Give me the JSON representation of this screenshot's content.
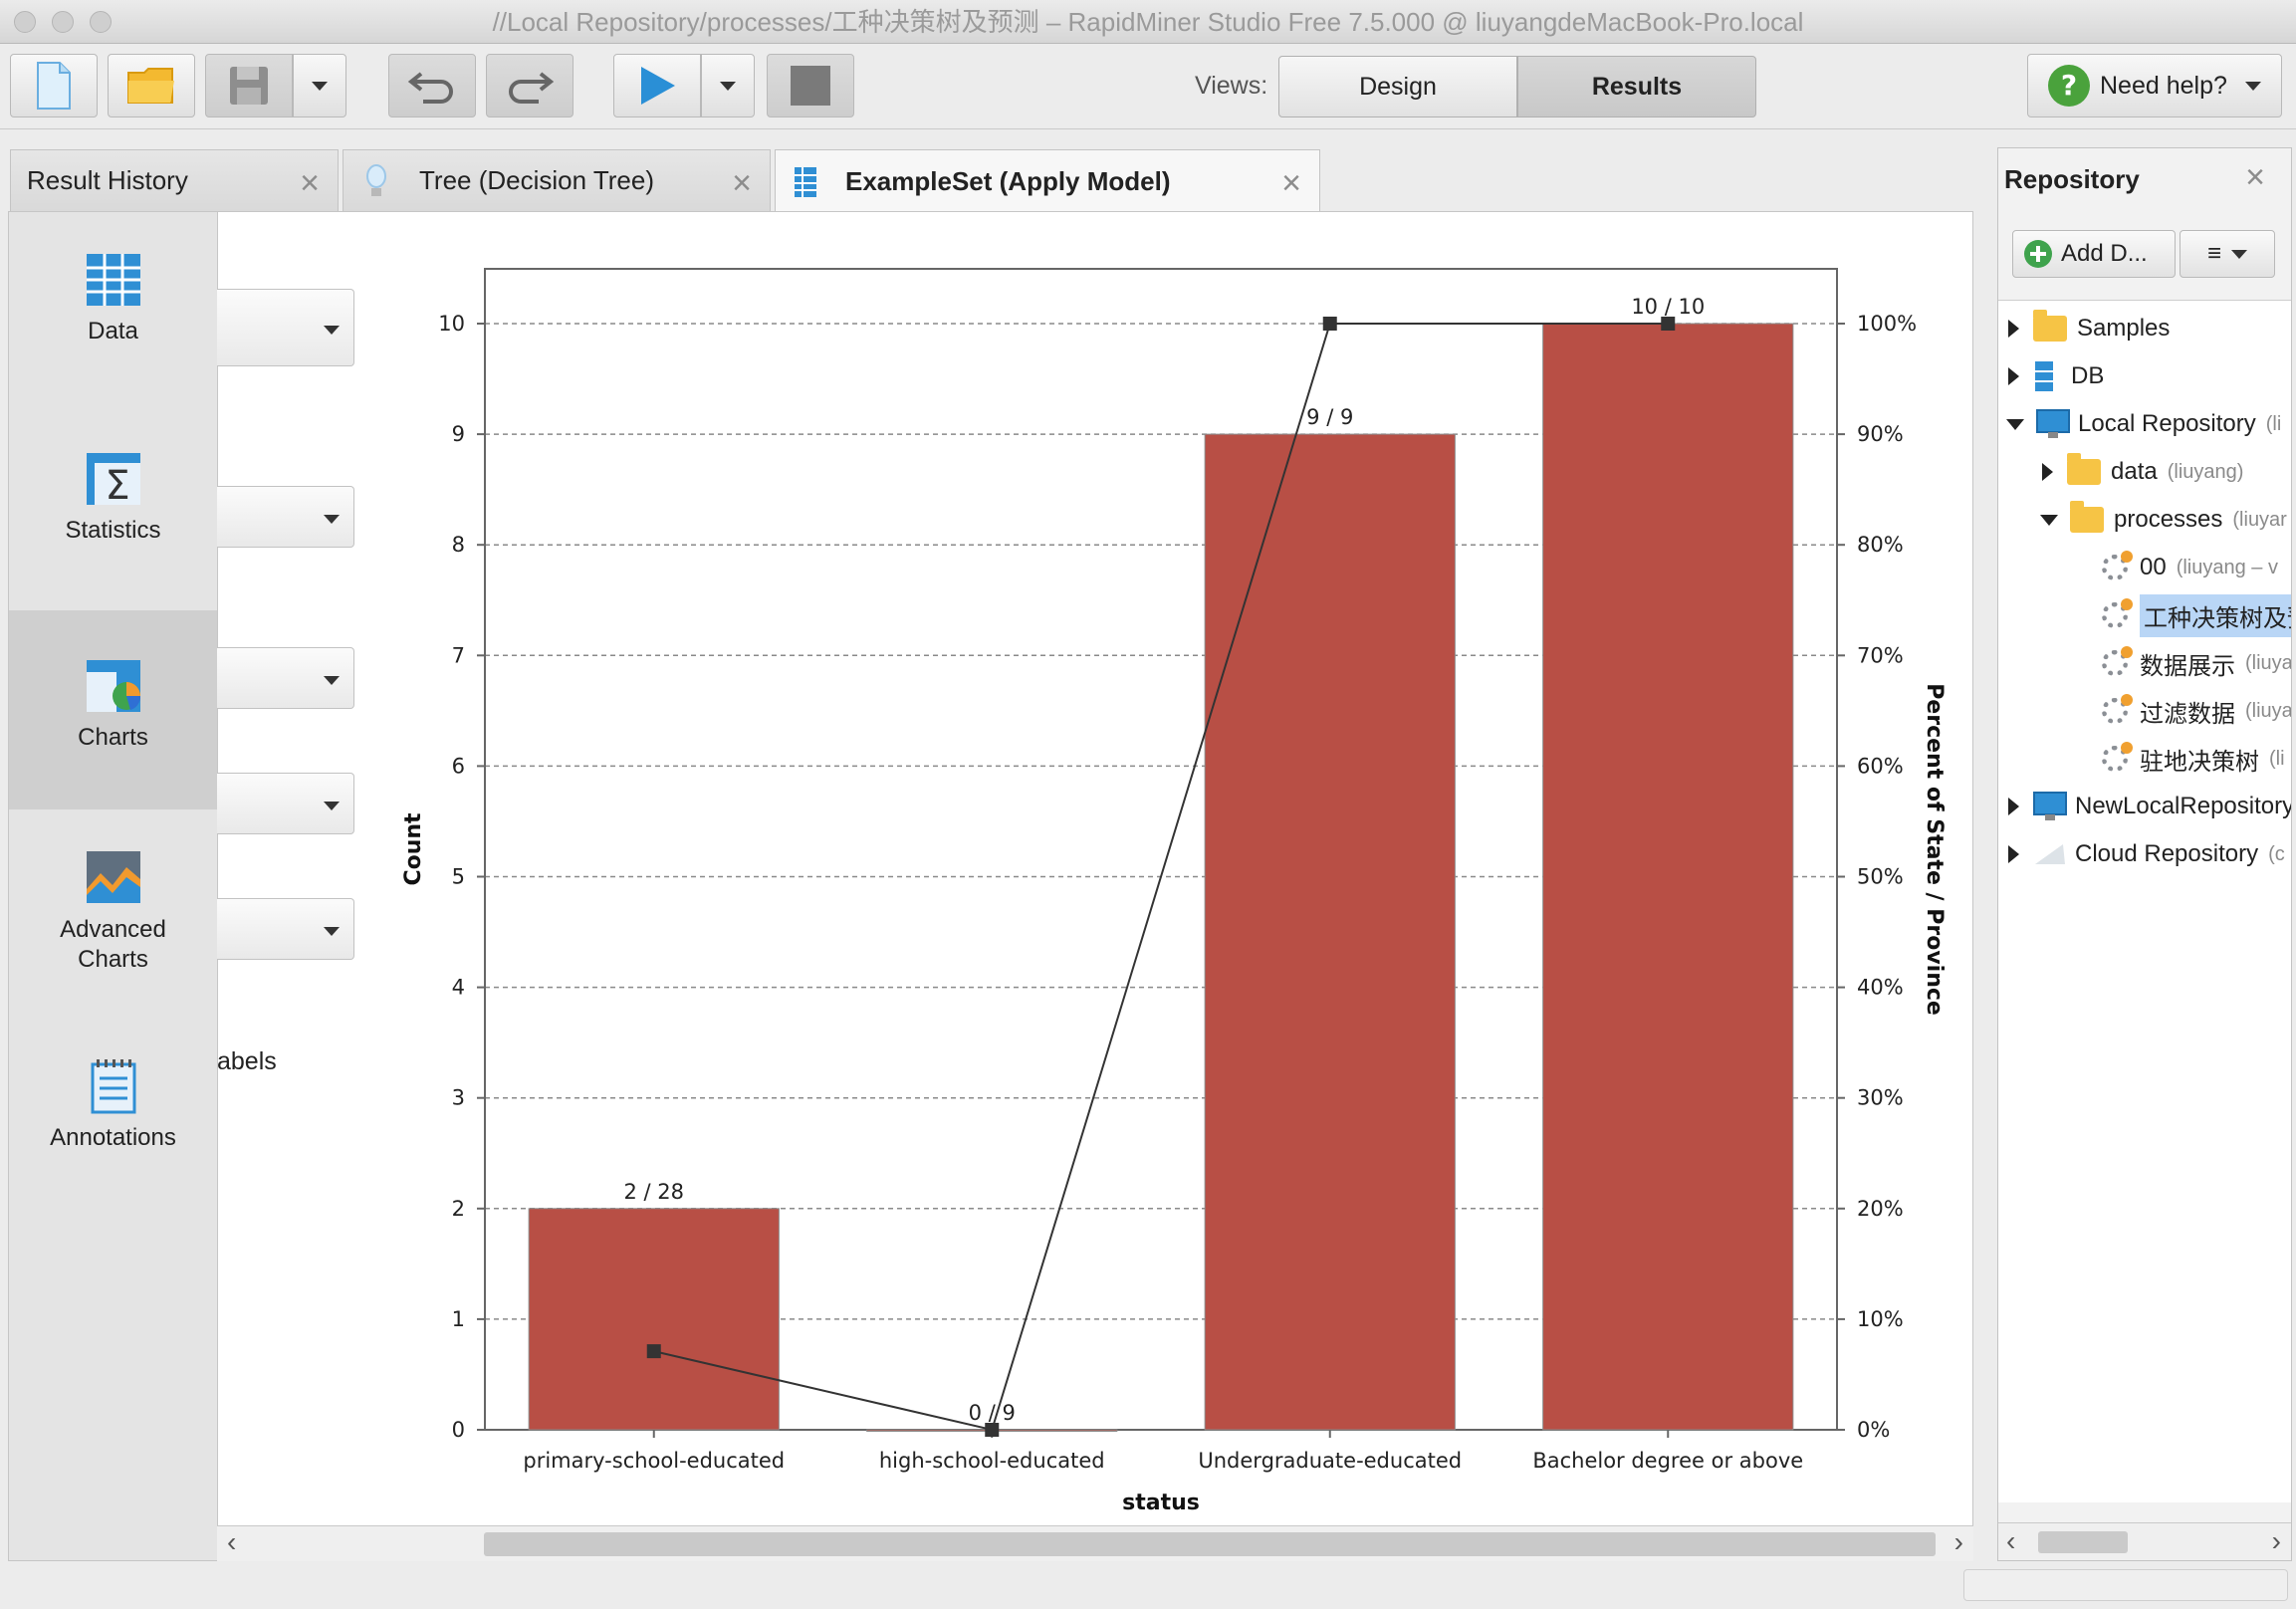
{
  "window": {
    "title": "//Local Repository/processes/工种决策树及预测 – RapidMiner Studio Free 7.5.000 @ liuyangdeMacBook-Pro.local"
  },
  "toolbar": {
    "views_label": "Views:",
    "design_label": "Design",
    "results_label": "Results",
    "help_label": "Need help?"
  },
  "tabs": [
    {
      "label": "Result History"
    },
    {
      "label": "Tree (Decision Tree)"
    },
    {
      "label": "ExampleSet (Apply Model)"
    }
  ],
  "leftnav": [
    {
      "label": "Data"
    },
    {
      "label": "Statistics"
    },
    {
      "label": "Charts"
    },
    {
      "label": "Advanced",
      "label2": "Charts"
    },
    {
      "label": "Annotations"
    }
  ],
  "controls": {
    "partial_label": "abels"
  },
  "chart_data": {
    "type": "bar",
    "categories": [
      "primary-school-educated",
      "high-school-educated",
      "Undergraduate-educated",
      "Bachelor degree or above"
    ],
    "values": [
      2,
      0,
      9,
      10
    ],
    "bar_labels": [
      "2 / 28",
      "0 / 9",
      "9 / 9",
      "10 / 10"
    ],
    "line_values": [
      7.1,
      0,
      100,
      100
    ],
    "ylabel": "Count",
    "y2label": "Percent of State / Province",
    "xlabel": "status",
    "ylim": [
      0,
      10
    ],
    "y2lim": [
      0,
      100
    ],
    "yticks": [
      "0",
      "1",
      "2",
      "3",
      "4",
      "5",
      "6",
      "7",
      "8",
      "9",
      "10"
    ],
    "y2ticks": [
      "0%",
      "10%",
      "20%",
      "30%",
      "40%",
      "50%",
      "60%",
      "70%",
      "80%",
      "90%",
      "100%"
    ],
    "grid": true,
    "bar_color": "#b84f45",
    "line_color": "#333333"
  },
  "repository": {
    "title": "Repository",
    "add_label": "Add D...",
    "menu_label": "≡",
    "items": [
      {
        "label": "Samples",
        "owner": ""
      },
      {
        "label": "DB",
        "owner": ""
      },
      {
        "label": "Local Repository",
        "owner": "(li"
      },
      {
        "label": "data",
        "owner": "(liuyang)"
      },
      {
        "label": "processes",
        "owner": "(liuyar"
      },
      {
        "label": "00",
        "owner": "(liuyang – v"
      },
      {
        "label": "工种决策树及预",
        "owner": ""
      },
      {
        "label": "数据展示",
        "owner": "(liuya"
      },
      {
        "label": "过滤数据",
        "owner": "(liuya"
      },
      {
        "label": "驻地决策树",
        "owner": "(li"
      },
      {
        "label": "NewLocalRepository",
        "owner": ""
      },
      {
        "label": "Cloud Repository",
        "owner": "(c"
      }
    ]
  }
}
